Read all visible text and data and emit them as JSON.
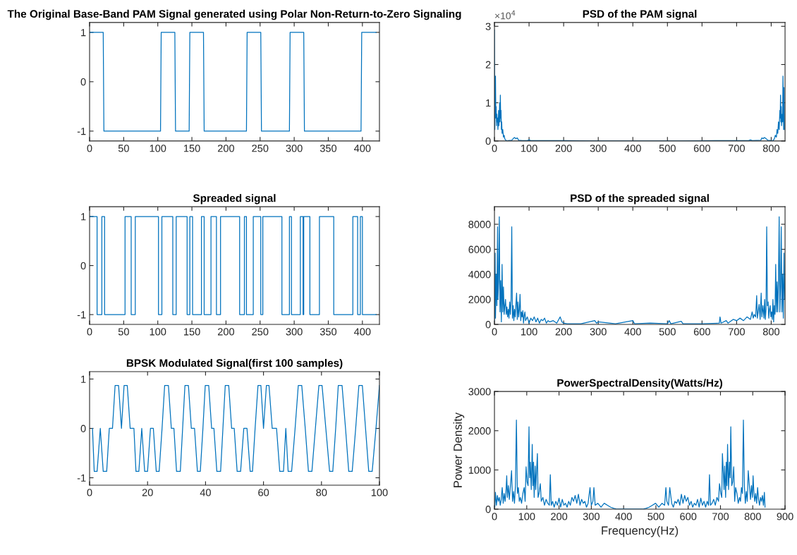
{
  "chart_data": [
    {
      "type": "line",
      "title": "The Original Base-Band PAM Signal generated using Polar Non-Return-to-Zero Signaling",
      "xlim": [
        0,
        425
      ],
      "xticks": [
        0,
        50,
        100,
        150,
        200,
        250,
        300,
        350,
        400
      ],
      "ylim": [
        -1.2,
        1.2
      ],
      "yticks": [
        -1,
        0,
        1
      ],
      "grid": false,
      "series": [
        {
          "color": "#0072bd",
          "x": [
            0,
            20,
            21,
            104,
            105,
            125,
            126,
            146,
            147,
            167,
            168,
            230,
            231,
            251,
            252,
            293,
            294,
            314,
            315,
            398,
            399,
            420
          ],
          "values": [
            1,
            1,
            -1,
            -1,
            1,
            1,
            -1,
            -1,
            1,
            1,
            -1,
            -1,
            1,
            1,
            -1,
            -1,
            1,
            1,
            -1,
            -1,
            1,
            1
          ]
        }
      ]
    },
    {
      "type": "line",
      "title": "PSD of the PAM signal",
      "xlim": [
        0,
        840
      ],
      "xticks": [
        0,
        100,
        200,
        300,
        400,
        500,
        600,
        700,
        800
      ],
      "ylim": [
        0,
        3.1
      ],
      "yticks": [
        0,
        1,
        2,
        3
      ],
      "grid": false,
      "annotations": [
        "×10$^{4}$"
      ],
      "series": [
        {
          "color": "#0072bd",
          "x": [
            0,
            1,
            2,
            3,
            4,
            5,
            6,
            7,
            8,
            9,
            10,
            11,
            12,
            13,
            14,
            15,
            16,
            17,
            18,
            19,
            20,
            21,
            22,
            24,
            26,
            28,
            30,
            33,
            36,
            40,
            50,
            55,
            58,
            62,
            66,
            70,
            80,
            95,
            100,
            105,
            120,
            150,
            200,
            300,
            400,
            440,
            540,
            640,
            690,
            720,
            735,
            740,
            745,
            770,
            773,
            777,
            780,
            784,
            790,
            800,
            803,
            806,
            809,
            812,
            815,
            817,
            819,
            821,
            823,
            825,
            826,
            827,
            828,
            829,
            830,
            831,
            832,
            833,
            834,
            835,
            836,
            837,
            838
          ],
          "values": [
            2.9,
            0.3,
            1.0,
            1.7,
            0.6,
            0.9,
            0.4,
            0.7,
            0.5,
            0.6,
            0.3,
            0.5,
            0.8,
            0.4,
            0.6,
            1.0,
            0.5,
            1.2,
            0.6,
            0.8,
            0.3,
            0.5,
            0.2,
            0.3,
            0.1,
            0.15,
            0.05,
            0.02,
            0,
            0.01,
            0.02,
            0.07,
            0.09,
            0.06,
            0.08,
            0.02,
            0.01,
            0.01,
            0.03,
            0.01,
            0.01,
            0.01,
            0.01,
            0,
            0,
            0,
            0,
            0.01,
            0.01,
            0.01,
            0.01,
            0.03,
            0.01,
            0.02,
            0.08,
            0.06,
            0.09,
            0.07,
            0.02,
            0.01,
            0,
            0.02,
            0.05,
            0.15,
            0.1,
            0.3,
            0.2,
            0.5,
            0.3,
            0.8,
            0.6,
            1.2,
            0.5,
            0.9,
            0.4,
            0.6,
            0.7,
            0.5,
            1.7,
            1.0,
            0.3,
            1.4,
            0.3
          ]
        }
      ]
    },
    {
      "type": "line",
      "title": "Spreaded signal",
      "xlim": [
        0,
        425
      ],
      "xticks": [
        0,
        50,
        100,
        150,
        200,
        250,
        300,
        350,
        400
      ],
      "ylim": [
        -1.2,
        1.2
      ],
      "yticks": [
        -1,
        0,
        1
      ],
      "grid": false,
      "series": [
        {
          "color": "#0072bd",
          "x": [
            0,
            11,
            11,
            18,
            18,
            22,
            22,
            52,
            52,
            61,
            61,
            67,
            67,
            101,
            101,
            106,
            106,
            122,
            122,
            127,
            127,
            143,
            143,
            147,
            147,
            151,
            151,
            164,
            164,
            168,
            168,
            178,
            178,
            186,
            186,
            192,
            192,
            220,
            220,
            227,
            227,
            230,
            230,
            240,
            240,
            251,
            251,
            254,
            254,
            282,
            282,
            293,
            293,
            296,
            296,
            309,
            309,
            313,
            313,
            314,
            314,
            323,
            323,
            337,
            337,
            358,
            358,
            386,
            386,
            393,
            393,
            397,
            397,
            400,
            400,
            420
          ],
          "values": [
            1,
            1,
            -1,
            -1,
            1,
            1,
            -1,
            -1,
            1,
            1,
            -1,
            -1,
            1,
            1,
            -1,
            -1,
            1,
            1,
            -1,
            -1,
            1,
            1,
            -1,
            -1,
            1,
            1,
            -1,
            -1,
            1,
            1,
            -1,
            -1,
            1,
            1,
            -1,
            -1,
            1,
            1,
            -1,
            -1,
            1,
            1,
            -1,
            -1,
            1,
            1,
            -1,
            -1,
            1,
            1,
            -1,
            -1,
            1,
            1,
            -1,
            -1,
            1,
            1,
            -1,
            -1,
            1,
            1,
            -1,
            -1,
            1,
            1,
            -1,
            -1,
            1,
            1,
            -1,
            -1,
            1,
            1,
            -1,
            -1
          ]
        }
      ]
    },
    {
      "type": "line",
      "title": "PSD of the spreaded signal",
      "xlim": [
        0,
        840
      ],
      "xticks": [
        0,
        100,
        200,
        300,
        400,
        500,
        600,
        700,
        800
      ],
      "ylim": [
        0,
        9400
      ],
      "yticks": [
        0,
        2000,
        4000,
        6000,
        8000
      ],
      "grid": false,
      "series": [
        {
          "color": "#0072bd",
          "x": [
            0,
            1,
            2,
            3,
            5,
            7,
            9,
            10,
            12,
            14,
            16,
            18,
            20,
            22,
            24,
            26,
            28,
            30,
            32,
            34,
            36,
            38,
            40,
            42,
            44,
            46,
            48,
            50,
            52,
            54,
            56,
            58,
            60,
            62,
            64,
            66,
            68,
            70,
            72,
            74,
            76,
            78,
            80,
            82,
            84,
            86,
            88,
            90,
            95,
            100,
            105,
            110,
            115,
            120,
            125,
            130,
            135,
            140,
            145,
            150,
            155,
            160,
            170,
            180,
            190,
            195,
            200,
            210,
            250,
            290,
            295,
            300,
            350,
            400,
            405,
            450,
            500,
            505,
            510,
            540,
            545,
            600,
            650,
            652,
            655,
            670,
            675,
            690,
            700,
            710,
            720,
            730,
            740,
            745,
            748,
            751,
            755,
            758,
            760,
            765,
            768,
            771,
            773,
            776,
            779,
            781,
            783,
            785,
            787,
            789,
            791,
            793,
            795,
            797,
            799,
            801,
            803,
            805,
            807,
            809,
            811,
            813,
            815,
            817,
            819,
            821,
            823,
            825,
            827,
            829,
            831,
            833,
            835,
            837,
            839
          ],
          "values": [
            300,
            2000,
            5700,
            500,
            4000,
            1500,
            7800,
            2000,
            3400,
            8600,
            1000,
            3500,
            200,
            4800,
            1000,
            3000,
            800,
            1500,
            2000,
            800,
            1400,
            600,
            1200,
            500,
            1800,
            800,
            2000,
            7800,
            500,
            1500,
            300,
            1200,
            600,
            1600,
            2500,
            400,
            1800,
            600,
            1200,
            2400,
            300,
            1000,
            600,
            1100,
            100,
            700,
            1000,
            300,
            600,
            100,
            500,
            300,
            600,
            200,
            500,
            100,
            400,
            300,
            500,
            100,
            300,
            200,
            300,
            100,
            600,
            200,
            100,
            50,
            50,
            300,
            100,
            200,
            50,
            300,
            50,
            100,
            50,
            300,
            50,
            250,
            50,
            50,
            100,
            600,
            100,
            300,
            100,
            400,
            300,
            500,
            300,
            600,
            400,
            1000,
            500,
            800,
            600,
            2300,
            500,
            1600,
            400,
            2500,
            600,
            1500,
            500,
            2000,
            400,
            1200,
            7800,
            1500,
            1800,
            500,
            1200,
            1500,
            600,
            1000,
            400,
            2000,
            200,
            1500,
            800,
            4800,
            1000,
            3400,
            1000,
            3500,
            8600,
            1000,
            3000,
            7800,
            1000,
            4000,
            500,
            5700,
            2000
          ]
        }
      ]
    },
    {
      "type": "line",
      "title": "BPSK Modulated Signal(first 100 samples)",
      "xlim": [
        0,
        100
      ],
      "xticks": [
        0,
        20,
        40,
        60,
        80,
        100
      ],
      "ylim": [
        -1.15,
        1.15
      ],
      "yticks": [
        -1,
        0,
        1
      ],
      "grid": false,
      "series": [
        {
          "color": "#0072bd",
          "x": [
            1,
            1.6,
            2.6,
            3.7,
            4.7,
            5.9,
            6.8,
            7.9,
            8.8,
            10,
            11,
            11.9,
            13,
            14,
            15.3,
            16,
            17,
            18,
            19,
            20,
            21,
            22,
            23,
            24,
            25,
            25.9,
            27.2,
            28.2,
            29.1,
            30,
            31.3,
            32.1,
            32.9,
            34.1,
            35.1,
            36.2,
            37.2,
            38.2,
            39.1,
            39.9,
            41.1,
            42.1,
            42.9,
            43.9,
            45.2,
            46,
            46.8,
            48,
            49,
            49.9,
            50.9,
            52.1,
            53.2,
            54.3,
            55.4,
            56.2,
            57.1,
            58.1,
            59.1,
            60,
            61,
            61.9,
            63,
            64.5,
            65.6,
            66.9,
            67.7,
            68.5,
            69.7,
            70.9,
            72,
            73.2,
            74.4,
            75.5,
            76.7,
            77.9,
            79.1,
            80.2,
            81.5,
            82.8,
            83.9,
            84.9,
            85.8,
            87.1,
            88.3,
            89.4,
            90.6,
            91.8,
            92.9,
            94.1,
            95.2,
            96.3,
            97.5,
            98.8,
            100
          ],
          "values": [
            0,
            -0.87,
            -0.87,
            0,
            -0.87,
            -0.87,
            0,
            0,
            0.87,
            0.87,
            0,
            0.87,
            0.87,
            0,
            0,
            -0.87,
            -0.87,
            0,
            -0.87,
            -0.87,
            0,
            0,
            -0.87,
            -0.87,
            0,
            0.87,
            0.87,
            0,
            0,
            -0.87,
            -0.87,
            0,
            0.87,
            0.87,
            0,
            0,
            -0.87,
            -0.87,
            0,
            0.87,
            0.87,
            0,
            0,
            -0.87,
            -0.87,
            0,
            0.87,
            0.87,
            0,
            0,
            -0.87,
            -0.87,
            0,
            0,
            -0.87,
            -0.87,
            0,
            0.87,
            0.87,
            0,
            0.87,
            0.87,
            0,
            0,
            -0.87,
            -0.87,
            0,
            -0.87,
            -0.87,
            0,
            0.87,
            0.87,
            0,
            -0.87,
            -0.87,
            0,
            0.87,
            0.87,
            0,
            -0.87,
            -0.87,
            0,
            0.87,
            0.87,
            0,
            -0.87,
            -0.87,
            0,
            0.87,
            0.87,
            0,
            -0.87,
            -0.87,
            0,
            0.87
          ]
        }
      ]
    },
    {
      "type": "line",
      "title": "PowerSpectralDensity(Watts/Hz)",
      "xlabel": "Frequency(Hz)",
      "ylabel": "Power Density",
      "xlim": [
        0,
        900
      ],
      "xticks": [
        0,
        100,
        200,
        300,
        400,
        500,
        600,
        700,
        800,
        900
      ],
      "ylim": [
        0,
        3000
      ],
      "yticks": [
        0,
        1000,
        2000,
        3000
      ],
      "grid": false,
      "series": [
        {
          "color": "#0072bd",
          "x": [
            1,
            3,
            6,
            9,
            12,
            15,
            18,
            21,
            24,
            27,
            30,
            33,
            36,
            38,
            40,
            43,
            46,
            49,
            53,
            56,
            59,
            62,
            65,
            68,
            71,
            74,
            77,
            80,
            84,
            88,
            92,
            95,
            98,
            101,
            104,
            107,
            109,
            111,
            114,
            117,
            119,
            121,
            123,
            126,
            128,
            130,
            133,
            135,
            138,
            142,
            145,
            150,
            155,
            160,
            165,
            170,
            173,
            176,
            180,
            185,
            190,
            195,
            200,
            205,
            210,
            215,
            220,
            225,
            230,
            235,
            240,
            245,
            250,
            255,
            260,
            265,
            270,
            275,
            280,
            285,
            290,
            296,
            300,
            305,
            308,
            312,
            320,
            330,
            340,
            350,
            360,
            370,
            380,
            400,
            420,
            439,
            459,
            469,
            479,
            489,
            499,
            509,
            519,
            527,
            531,
            534,
            539,
            543,
            549,
            554,
            559,
            564,
            569,
            574,
            579,
            584,
            589,
            594,
            599,
            604,
            609,
            614,
            619,
            624,
            629,
            634,
            639,
            644,
            649,
            654,
            659,
            663,
            666,
            669,
            674,
            679,
            684,
            689,
            694,
            697,
            701,
            704,
            706,
            709,
            711,
            713,
            716,
            718,
            720,
            722,
            725,
            728,
            730,
            732,
            735,
            738,
            741,
            744,
            747,
            751,
            755,
            759,
            762,
            765,
            768,
            771,
            774,
            777,
            780,
            783,
            786,
            790,
            793,
            796,
            799,
            801,
            803,
            806,
            809,
            812,
            815,
            818,
            821,
            824,
            827,
            830,
            833,
            836,
            838
          ],
          "values": [
            50,
            430,
            100,
            350,
            200,
            300,
            100,
            250,
            550,
            150,
            400,
            200,
            500,
            850,
            300,
            600,
            250,
            550,
            980,
            200,
            450,
            150,
            600,
            2270,
            400,
            550,
            200,
            300,
            150,
            400,
            550,
            200,
            1080,
            700,
            600,
            2100,
            800,
            1200,
            500,
            1650,
            600,
            1200,
            300,
            1100,
            500,
            900,
            1420,
            300,
            400,
            650,
            200,
            300,
            100,
            250,
            150,
            100,
            880,
            100,
            200,
            50,
            200,
            100,
            280,
            50,
            250,
            100,
            150,
            50,
            200,
            100,
            300,
            200,
            350,
            150,
            380,
            100,
            250,
            150,
            200,
            50,
            150,
            550,
            100,
            200,
            550,
            100,
            150,
            50,
            150,
            100,
            50,
            20,
            0,
            0,
            0,
            0,
            0,
            20,
            50,
            100,
            150,
            50,
            150,
            100,
            550,
            200,
            100,
            550,
            150,
            50,
            200,
            150,
            250,
            100,
            380,
            150,
            350,
            200,
            300,
            100,
            200,
            50,
            150,
            100,
            250,
            50,
            280,
            100,
            200,
            50,
            200,
            100,
            880,
            100,
            150,
            250,
            100,
            300,
            200,
            650,
            400,
            300,
            1420,
            900,
            500,
            1100,
            300,
            1200,
            600,
            1650,
            500,
            1200,
            800,
            2100,
            600,
            700,
            1080,
            200,
            550,
            400,
            150,
            300,
            200,
            550,
            400,
            2270,
            600,
            150,
            450,
            200,
            980,
            550,
            250,
            600,
            300,
            850,
            500,
            200,
            400,
            150,
            550,
            250,
            100,
            300,
            200,
            350,
            100,
            430,
            50
          ]
        }
      ]
    }
  ]
}
